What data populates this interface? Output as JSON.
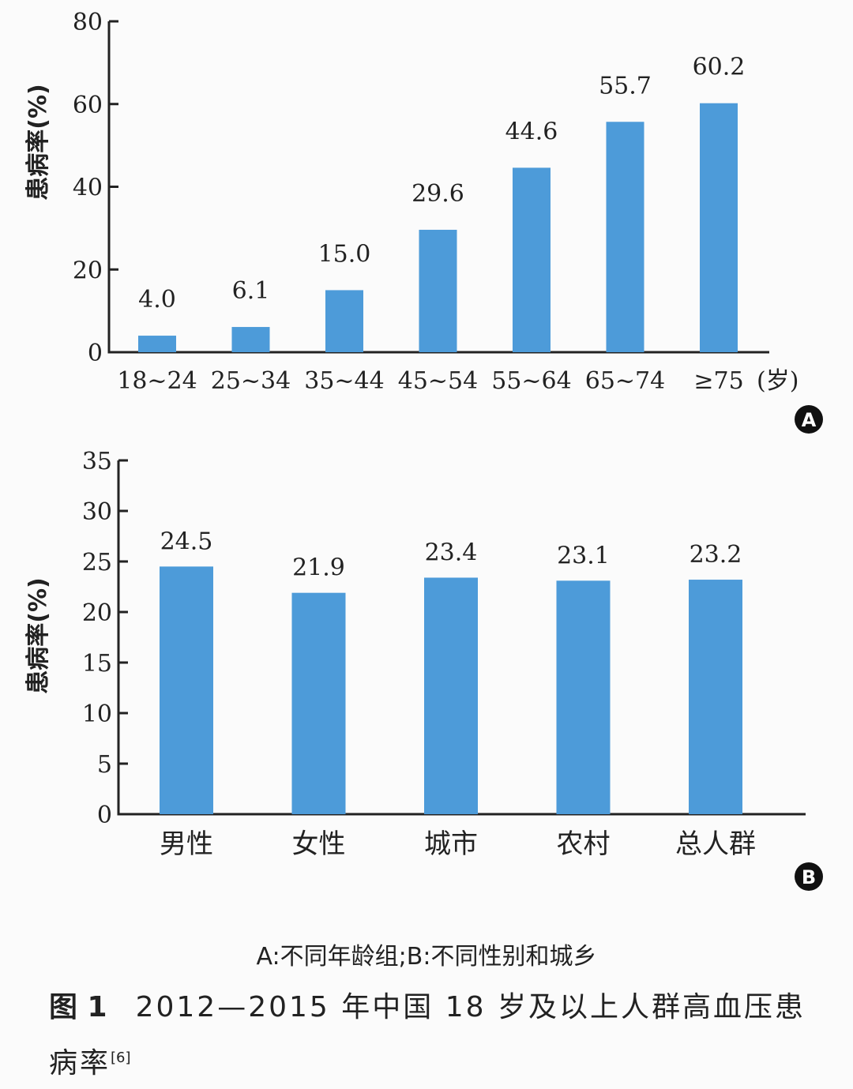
{
  "chart_data": [
    {
      "type": "bar",
      "panel_label": "A",
      "ylabel": "患病率(%)",
      "x_unit": "(岁)",
      "ylim": [
        0,
        80
      ],
      "yticks": [
        0,
        20,
        40,
        60,
        80
      ],
      "categories": [
        "18~24",
        "25~34",
        "35~44",
        "45~54",
        "55~64",
        "65~74",
        "≥75"
      ],
      "values": [
        4.0,
        6.1,
        15.0,
        29.6,
        44.6,
        55.7,
        60.2
      ],
      "data_labels": [
        "4.0",
        "6.1",
        "15.0",
        "29.6",
        "44.6",
        "55.7",
        "60.2"
      ],
      "bar_color": "#4d9bd9"
    },
    {
      "type": "bar",
      "panel_label": "B",
      "ylabel": "患病率(%)",
      "ylim": [
        0,
        35
      ],
      "yticks": [
        0,
        5,
        10,
        15,
        20,
        25,
        30,
        35
      ],
      "categories": [
        "男性",
        "女性",
        "城市",
        "农村",
        "总人群"
      ],
      "values": [
        24.5,
        21.9,
        23.4,
        23.1,
        23.2
      ],
      "data_labels": [
        "24.5",
        "21.9",
        "23.4",
        "23.1",
        "23.2"
      ],
      "bar_color": "#4d9bd9"
    }
  ],
  "figure": {
    "subcaption": "A:不同年龄组;B:不同性别和城乡",
    "caption_number": "图 1",
    "caption_text": "2012—2015 年中国 18 岁及以上人群高血压患病率",
    "caption_ref": "[6]"
  }
}
